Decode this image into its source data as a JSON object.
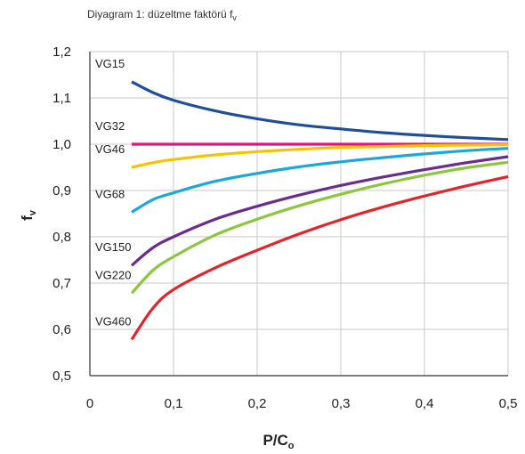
{
  "chart_data": {
    "type": "line",
    "title": "Diyagram 1: düzeltme faktörü f",
    "title_subscript": "v",
    "xlabel": "P/C",
    "xlabel_subscript": "o",
    "ylabel": "f",
    "ylabel_subscript": "v",
    "xlim": [
      0,
      0.5
    ],
    "ylim": [
      0.5,
      1.2
    ],
    "x_ticks": [
      "0",
      "0,1",
      "0,2",
      "0,3",
      "0,4",
      "0,5"
    ],
    "y_ticks": [
      "0,5",
      "0,6",
      "0,7",
      "0,8",
      "0,9",
      "1,0",
      "1,1",
      "1,2"
    ],
    "grid": true,
    "x": [
      0.05,
      0.075,
      0.1,
      0.15,
      0.2,
      0.25,
      0.3,
      0.35,
      0.4,
      0.45,
      0.5
    ],
    "series": [
      {
        "name": "VG15",
        "color": "#1f4e9c",
        "values": [
          1.135,
          1.112,
          1.095,
          1.072,
          1.055,
          1.042,
          1.033,
          1.025,
          1.019,
          1.014,
          1.01
        ]
      },
      {
        "name": "VG32",
        "color": "#e0147c",
        "values": [
          1.0,
          1.0,
          1.0,
          1.0,
          1.0,
          1.0,
          1.0,
          1.0,
          1.0,
          1.0,
          1.0
        ]
      },
      {
        "name": "VG46",
        "color": "#f5c400",
        "values": [
          0.95,
          0.96,
          0.967,
          0.977,
          0.984,
          0.989,
          0.993,
          0.995,
          0.997,
          0.998,
          0.999
        ]
      },
      {
        "name": "VG68",
        "color": "#1aa7e0",
        "values": [
          0.853,
          0.88,
          0.895,
          0.92,
          0.937,
          0.951,
          0.962,
          0.971,
          0.979,
          0.986,
          0.991
        ]
      },
      {
        "name": "VG150",
        "color": "#6a2c8e",
        "values": [
          0.738,
          0.776,
          0.8,
          0.838,
          0.866,
          0.89,
          0.911,
          0.929,
          0.945,
          0.96,
          0.973
        ]
      },
      {
        "name": "VG220",
        "color": "#8cc63f",
        "values": [
          0.678,
          0.727,
          0.757,
          0.804,
          0.838,
          0.867,
          0.892,
          0.914,
          0.933,
          0.949,
          0.961
        ]
      },
      {
        "name": "VG460",
        "color": "#e3242b",
        "values": [
          0.578,
          0.645,
          0.686,
          0.733,
          0.771,
          0.806,
          0.837,
          0.864,
          0.888,
          0.91,
          0.93
        ]
      }
    ]
  }
}
